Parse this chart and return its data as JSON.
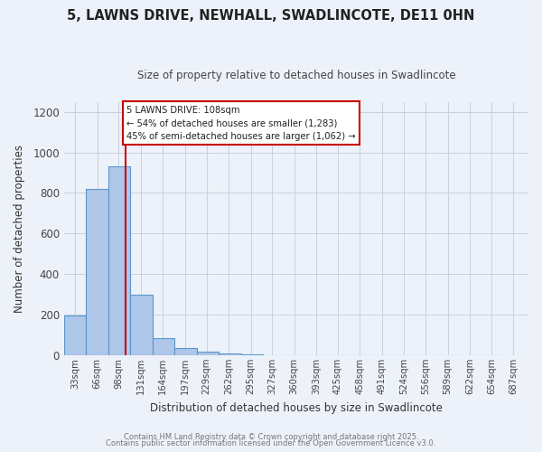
{
  "title": "5, LAWNS DRIVE, NEWHALL, SWADLINCOTE, DE11 0HN",
  "subtitle": "Size of property relative to detached houses in Swadlincote",
  "xlabel": "Distribution of detached houses by size in Swadlincote",
  "ylabel": "Number of detached properties",
  "bin_left_edges": [
    16.5,
    49.5,
    82.5,
    115.5,
    148.5,
    181.5,
    214.5,
    247.5,
    280.5,
    313.5,
    346.5,
    379.5,
    412.5,
    445.5,
    478.5,
    511.5,
    544.5,
    577.5,
    610.5,
    643.5
  ],
  "bin_width": 33,
  "bar_heights": [
    196,
    820,
    930,
    300,
    85,
    35,
    18,
    10,
    5,
    0,
    0,
    0,
    0,
    0,
    0,
    0,
    0,
    0,
    0,
    0
  ],
  "bar_color": "#aec6e8",
  "bar_edge_color": "#5a96cc",
  "bg_color": "#edf2fa",
  "grid_color": "#c8d0dc",
  "vline_x": 108,
  "vline_color": "#cc0000",
  "annotation_line1": "5 LAWNS DRIVE: 108sqm",
  "annotation_line2": "← 54% of detached houses are smaller (1,283)",
  "annotation_line3": "45% of semi-detached houses are larger (1,062) →",
  "annotation_box_color": "#ffffff",
  "annotation_box_edge": "#cc0000",
  "ylim": [
    0,
    1250
  ],
  "yticks": [
    0,
    200,
    400,
    600,
    800,
    1000,
    1200
  ],
  "xlim": [
    16.5,
    709.5
  ],
  "xtick_positions": [
    33,
    66,
    98,
    131,
    164,
    197,
    229,
    262,
    295,
    327,
    360,
    393,
    425,
    458,
    491,
    524,
    556,
    589,
    622,
    654,
    687
  ],
  "xtick_labels": [
    "33sqm",
    "66sqm",
    "98sqm",
    "131sqm",
    "164sqm",
    "197sqm",
    "229sqm",
    "262sqm",
    "295sqm",
    "327sqm",
    "360sqm",
    "393sqm",
    "425sqm",
    "458sqm",
    "491sqm",
    "524sqm",
    "556sqm",
    "589sqm",
    "622sqm",
    "654sqm",
    "687sqm"
  ],
  "footer1": "Contains HM Land Registry data © Crown copyright and database right 2025.",
  "footer2": "Contains public sector information licensed under the Open Government Licence v3.0."
}
